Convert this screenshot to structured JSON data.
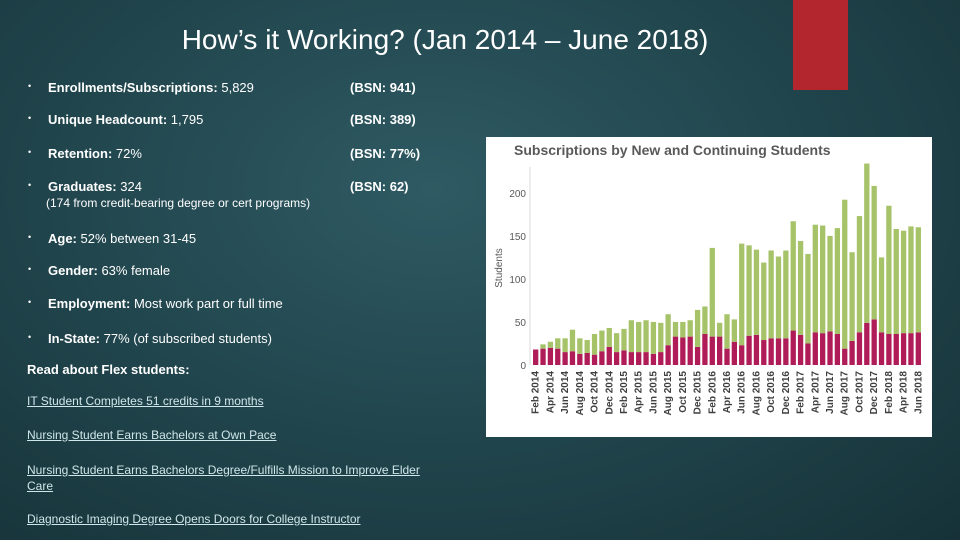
{
  "slide": {
    "title": "How’s it Working? (Jan 2014 – June 2018)",
    "accent_color": "#b3262d"
  },
  "stats": [
    {
      "label": "Enrollments/Subscriptions:",
      "value": " 5,829",
      "bsn": "(BSN: 941)"
    },
    {
      "label": "Unique Headcount:",
      "value": " 1,795",
      "bsn": "(BSN: 389)"
    },
    {
      "label": "Retention:",
      "value": " 72%",
      "bsn": "(BSN: 77%)"
    },
    {
      "label": "Graduates:",
      "value": "  324",
      "bsn": "(BSN: 62)",
      "note": "(174 from credit-bearing degree or cert programs)"
    },
    {
      "label": "Age:",
      "value": " 52% between 31-45"
    },
    {
      "label": "Gender:",
      "value": " 63% female"
    },
    {
      "label": "Employment:",
      "value": " Most work part or full time"
    },
    {
      "label": "In-State:",
      "value": " 77% (of subscribed students)"
    }
  ],
  "read_about": {
    "heading": "Read about Flex students:",
    "links": [
      {
        "line1": "IT Student Completes 51 credits in 9 months"
      },
      {
        "line1": "Nursing Student Earns Bachelors at Own Pace"
      },
      {
        "line1": "Nursing Student Earns Bachelors Degree/Fulfills Mission to Improve Elder",
        "line2": "Care"
      },
      {
        "line1": "Diagnostic Imaging Degree Opens Doors for College Instructor"
      }
    ]
  },
  "chart_data": {
    "type": "bar",
    "stacked": true,
    "title": "Subscriptions by New and Continuing Students",
    "xlabel": "",
    "ylabel": "Students",
    "ylim": [
      0,
      230
    ],
    "yticks": [
      0,
      50,
      100,
      150,
      200
    ],
    "grid": false,
    "legend": "none",
    "categories": [
      "Feb 2014",
      "",
      "Apr 2014",
      "",
      "Jun 2014",
      "",
      "Aug 2014",
      "",
      "Oct 2014",
      "",
      "Dec 2014",
      "",
      "Feb 2015",
      "",
      "Apr 2015",
      "",
      "Jun 2015",
      "",
      "Aug 2015",
      "",
      "Oct 2015",
      "",
      "Dec 2015",
      "",
      "Feb 2016",
      "",
      "Apr 2016",
      "",
      "Jun 2016",
      "",
      "Aug 2016",
      "",
      "Oct 2016",
      "",
      "Dec 2016",
      "",
      "Feb 2017",
      "",
      "Apr 2017",
      "",
      "Jun 2017",
      "",
      "Aug 2017",
      "",
      "Oct 2017",
      "",
      "Dec 2017",
      "",
      "Feb 2018",
      "",
      "Apr 2018",
      "",
      "Jun 2018"
    ],
    "series": [
      {
        "name": "New",
        "color": "#b01c57",
        "values": [
          18,
          19,
          20,
          19,
          15,
          16,
          13,
          14,
          12,
          16,
          21,
          15,
          17,
          15,
          15,
          15,
          13,
          15,
          23,
          33,
          32,
          33,
          21,
          36,
          33,
          33,
          19,
          27,
          23,
          34,
          35,
          29,
          31,
          31,
          31,
          40,
          35,
          25,
          38,
          37,
          39,
          36,
          19,
          28,
          38,
          49,
          53,
          38,
          36,
          36,
          37,
          37,
          38
        ]
      },
      {
        "name": "Continuing",
        "color": "#a6c36a",
        "values": [
          0,
          5,
          7,
          12,
          16,
          25,
          18,
          15,
          24,
          24,
          22,
          22,
          25,
          37,
          35,
          37,
          37,
          34,
          36,
          17,
          18,
          19,
          43,
          32,
          103,
          16,
          40,
          26,
          118,
          105,
          99,
          90,
          102,
          95,
          102,
          127,
          109,
          104,
          125,
          125,
          111,
          123,
          173,
          103,
          135,
          185,
          155,
          87,
          149,
          122,
          119,
          124,
          122
        ]
      }
    ]
  }
}
